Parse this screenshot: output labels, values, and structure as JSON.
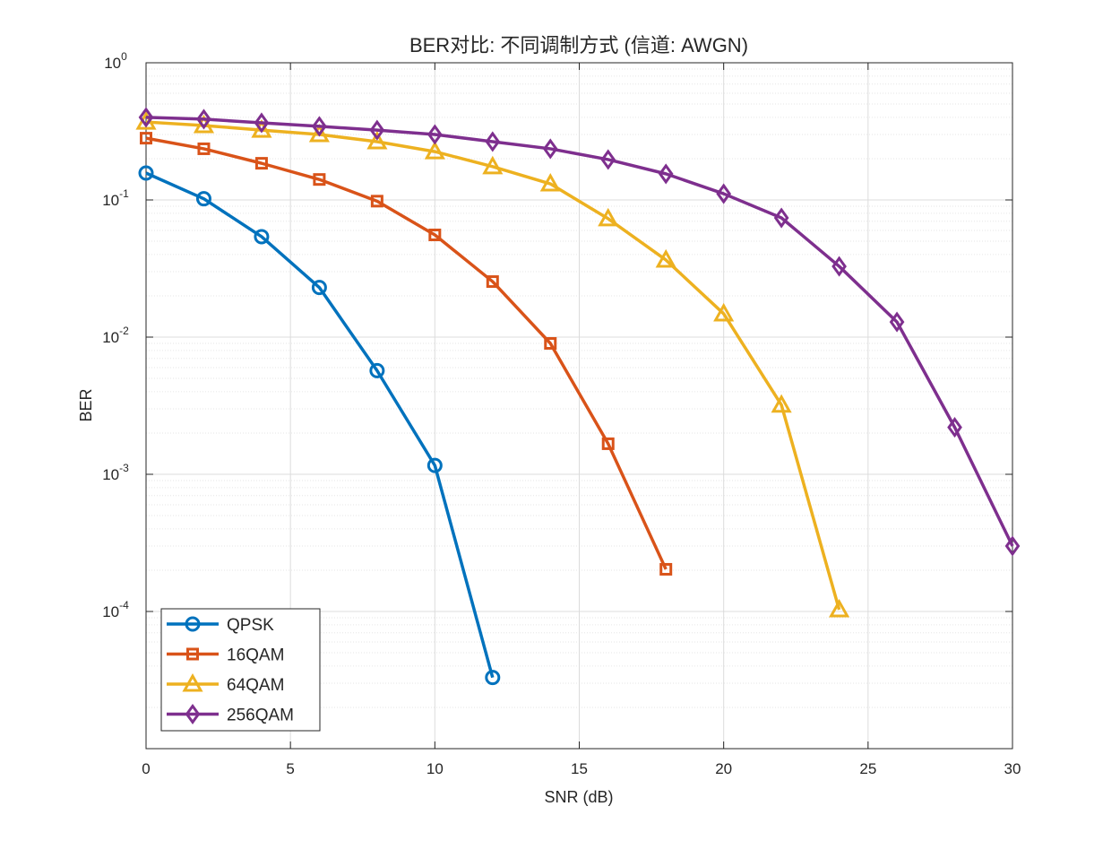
{
  "chart_data": {
    "type": "line",
    "title": "BER对比: 不同调制方式 (信道: AWGN)",
    "xlabel": "SNR (dB)",
    "ylabel": "BER",
    "xlim": [
      0,
      30
    ],
    "ylim": [
      1e-05,
      1
    ],
    "yscale": "log",
    "grid": true,
    "legend_placement": "bottom-left",
    "xticks": [
      "0",
      "5",
      "10",
      "15",
      "20",
      "25",
      "30"
    ],
    "yticks": [
      {
        "base": "10",
        "exp": "0"
      },
      {
        "base": "10",
        "exp": "-1"
      },
      {
        "base": "10",
        "exp": "-2"
      },
      {
        "base": "10",
        "exp": "-3"
      },
      {
        "base": "10",
        "exp": "-4"
      }
    ],
    "series": [
      {
        "name": "QPSK",
        "color": "#0072BD",
        "marker": "circle",
        "x": [
          0,
          2,
          4,
          6,
          8,
          10,
          12
        ],
        "y": [
          0.157,
          0.102,
          0.054,
          0.023,
          0.0057,
          0.00116,
          3.3e-05
        ]
      },
      {
        "name": "16QAM",
        "color": "#D95319",
        "marker": "square",
        "x": [
          0,
          2,
          4,
          6,
          8,
          10,
          12,
          14,
          16,
          18
        ],
        "y": [
          0.282,
          0.236,
          0.185,
          0.141,
          0.098,
          0.0556,
          0.0254,
          0.009,
          0.00167,
          0.000203
        ]
      },
      {
        "name": "64QAM",
        "color": "#EDB120",
        "marker": "triangle",
        "x": [
          0,
          2,
          4,
          6,
          8,
          10,
          12,
          14,
          16,
          18,
          20,
          22,
          24
        ],
        "y": [
          0.37,
          0.349,
          0.323,
          0.3,
          0.266,
          0.225,
          0.175,
          0.131,
          0.073,
          0.0365,
          0.0148,
          0.0032,
          0.000103
        ]
      },
      {
        "name": "256QAM",
        "color": "#7E2F8E",
        "marker": "diamond",
        "x": [
          0,
          2,
          4,
          6,
          8,
          10,
          12,
          14,
          16,
          18,
          20,
          22,
          24,
          26,
          28,
          30
        ],
        "y": [
          0.4,
          0.388,
          0.365,
          0.344,
          0.323,
          0.3,
          0.266,
          0.236,
          0.197,
          0.155,
          0.111,
          0.074,
          0.0328,
          0.0129,
          0.0022,
          0.0003
        ]
      }
    ]
  }
}
